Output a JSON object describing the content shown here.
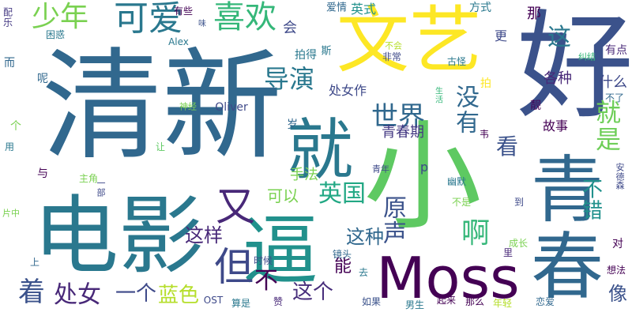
{
  "words": [
    {
      "text": "清新",
      "color": "#31688e"
    },
    {
      "text": "好",
      "color": "#3b528b"
    },
    {
      "text": "文艺",
      "color": "#fde725"
    },
    {
      "text": "电影",
      "color": "#2a788e"
    },
    {
      "text": "小",
      "color": "#5ec962"
    },
    {
      "text": "青春",
      "color": "#31688e"
    },
    {
      "text": "逼",
      "color": "#21918c"
    },
    {
      "text": "就",
      "color": "#2a788e"
    },
    {
      "text": "Moss",
      "color": "#440154"
    },
    {
      "text": "可爱",
      "color": "#2a788e"
    },
    {
      "text": "少年",
      "color": "#7ad151"
    },
    {
      "text": "喜欢",
      "color": "#35b779"
    },
    {
      "text": "又",
      "color": "#482878"
    },
    {
      "text": "但",
      "color": "#3e4989"
    },
    {
      "text": "导演",
      "color": "#2a788e"
    },
    {
      "text": "世界",
      "color": "#31688e"
    },
    {
      "text": "没有",
      "color": "#31688e"
    },
    {
      "text": "就是",
      "color": "#6ece58"
    },
    {
      "text": "处女作",
      "color": "#3e4989"
    },
    {
      "text": "这",
      "color": "#2a788e"
    },
    {
      "text": "各种",
      "color": "#482878"
    },
    {
      "text": "青春期",
      "color": "#443983"
    },
    {
      "text": "看",
      "color": "#3b528b"
    },
    {
      "text": "英国",
      "color": "#22a884"
    },
    {
      "text": "可以",
      "color": "#7ad151"
    },
    {
      "text": "手法",
      "color": "#7ad151"
    },
    {
      "text": "原声",
      "color": "#3b528b"
    },
    {
      "text": "啊",
      "color": "#35b779"
    },
    {
      "text": "不错",
      "color": "#21918c"
    },
    {
      "text": "这样",
      "color": "#482878"
    },
    {
      "text": "这种",
      "color": "#31688e"
    },
    {
      "text": "不",
      "color": "#440154"
    },
    {
      "text": "着",
      "color": "#3b528b"
    },
    {
      "text": "处女",
      "color": "#482878"
    },
    {
      "text": "一个",
      "color": "#3e4989"
    },
    {
      "text": "蓝色",
      "color": "#b5de2b"
    },
    {
      "text": "这个",
      "color": "#472d7b"
    },
    {
      "text": "能",
      "color": "#440154"
    },
    {
      "text": "像",
      "color": "#3b528b"
    },
    {
      "text": "什么",
      "color": "#3e4989"
    },
    {
      "text": "故事",
      "color": "#440154"
    },
    {
      "text": "英式",
      "color": "#21918c"
    },
    {
      "text": "爱情",
      "color": "#31688e"
    },
    {
      "text": "有些",
      "color": "#440154"
    },
    {
      "text": "会",
      "color": "#3e4989"
    },
    {
      "text": "拍得",
      "color": "#2a788e"
    },
    {
      "text": "方式",
      "color": "#2a788e"
    },
    {
      "text": "那",
      "color": "#440154"
    },
    {
      "text": "更",
      "color": "#3e4989"
    },
    {
      "text": "有点",
      "color": "#482878"
    },
    {
      "text": "纠结",
      "color": "#35b779"
    },
    {
      "text": "古怪",
      "color": "#2a788e"
    },
    {
      "text": "非常",
      "color": "#3e4989"
    },
    {
      "text": "不会",
      "color": "#b5de2b"
    },
    {
      "text": "斯",
      "color": "#2a788e"
    },
    {
      "text": "Alex",
      "color": "#2a788e"
    },
    {
      "text": "困惑",
      "color": "#2a788e"
    },
    {
      "text": "配乐",
      "color": "#443983"
    },
    {
      "text": "而",
      "color": "#31688e"
    },
    {
      "text": "呢",
      "color": "#31688e"
    },
    {
      "text": "味",
      "color": "#3b528b"
    },
    {
      "text": "神经",
      "color": "#7ad151"
    },
    {
      "text": "Oliver",
      "color": "#3e4989"
    },
    {
      "text": "岁",
      "color": "#31688e"
    },
    {
      "text": "个",
      "color": "#7ad151"
    },
    {
      "text": "用",
      "color": "#2a788e"
    },
    {
      "text": "让",
      "color": "#5ec962"
    },
    {
      "text": "与",
      "color": "#440154"
    },
    {
      "text": "主角",
      "color": "#7ad151"
    },
    {
      "text": "一部",
      "color": "#3e4989"
    },
    {
      "text": "片中",
      "color": "#7ad151"
    },
    {
      "text": "上",
      "color": "#31688e"
    },
    {
      "text": "时候",
      "color": "#3e4989"
    },
    {
      "text": "OST",
      "color": "#3e4989"
    },
    {
      "text": "算是",
      "color": "#2a788e"
    },
    {
      "text": "赞",
      "color": "#482878"
    },
    {
      "text": "如果",
      "color": "#3b528b"
    },
    {
      "text": "男生",
      "color": "#2a788e"
    },
    {
      "text": "起来",
      "color": "#440154"
    },
    {
      "text": "那么",
      "color": "#440154"
    },
    {
      "text": "年轻",
      "color": "#b5de2b"
    },
    {
      "text": "恋爱",
      "color": "#31688e"
    },
    {
      "text": "想法",
      "color": "#440154"
    },
    {
      "text": "对",
      "color": "#440154"
    },
    {
      "text": "成长",
      "color": "#7ad151"
    },
    {
      "text": "镜头",
      "color": "#31688e"
    },
    {
      "text": "去",
      "color": "#2a788e"
    },
    {
      "text": "里",
      "color": "#482878"
    },
    {
      "text": "到",
      "color": "#3e4989"
    },
    {
      "text": "不是",
      "color": "#7ad151"
    },
    {
      "text": "幽默",
      "color": "#2a788e"
    },
    {
      "text": "p",
      "color": "#3e4989"
    },
    {
      "text": "青年",
      "color": "#3e4989"
    },
    {
      "text": "安德森",
      "color": "#3e4989"
    },
    {
      "text": "韦",
      "color": "#440154"
    },
    {
      "text": "不了",
      "color": "#31688e"
    },
    {
      "text": "靓",
      "color": "#440154"
    },
    {
      "text": "生活",
      "color": "#35b779"
    },
    {
      "text": "拍",
      "color": "#fde725"
    }
  ]
}
